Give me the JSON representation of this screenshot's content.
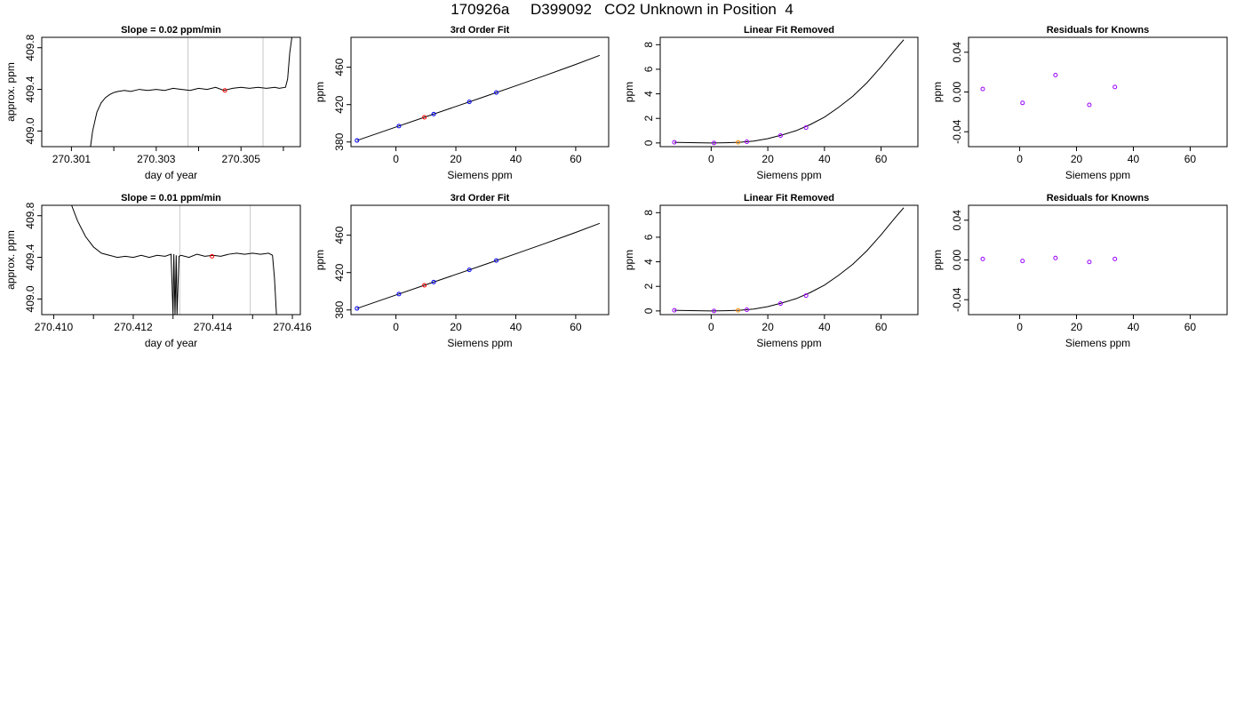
{
  "page": {
    "title": "170926a     D399092   CO2 Unknown in Position  4"
  },
  "colors": {
    "axis": "#000000",
    "curve": "#000000",
    "known_points": "#0000ff",
    "unknown_point": "#ff0000",
    "unknown_point_linear_removed": "#ff8c00",
    "residual_points": "#9900ff",
    "reference_lines": "#c8c8c8"
  },
  "chart_data": [
    {
      "id": "r1c1",
      "type": "line",
      "title": "Slope =  0.02  ppm/min",
      "xlabel": "day of year",
      "ylabel": "approx. ppm",
      "xlim": [
        270.3003,
        270.3064
      ],
      "ylim": [
        408.85,
        409.9
      ],
      "xticks": [
        270.301,
        270.303,
        270.305
      ],
      "xtick_labels": [
        "270.301",
        "270.303",
        "270.305"
      ],
      "xticks_minor": [
        270.302,
        270.304,
        270.306
      ],
      "yticks": [
        409.0,
        409.4,
        409.8
      ],
      "ytick_labels": [
        "409.0",
        "409.4",
        "409.8"
      ],
      "vlines": [
        270.30375,
        270.30552
      ],
      "series": [
        {
          "style": "line",
          "x": [
            270.30145,
            270.3015,
            270.3016,
            270.3017,
            270.3018,
            270.3019,
            270.302,
            270.3021,
            270.30225,
            270.3024,
            270.3026,
            270.3028,
            270.303,
            270.3032,
            270.3034,
            270.3036,
            270.3038,
            270.304,
            270.3042,
            270.3044,
            270.3046,
            270.3048,
            270.305,
            270.3052,
            270.3054,
            270.3056,
            270.3058,
            270.3059,
            270.30605,
            270.3061,
            270.30615,
            270.3062
          ],
          "y": [
            408.85,
            409.0,
            409.18,
            409.27,
            409.32,
            409.35,
            409.37,
            409.38,
            409.39,
            409.38,
            409.4,
            409.39,
            409.4,
            409.39,
            409.41,
            409.4,
            409.39,
            409.41,
            409.4,
            409.42,
            409.39,
            409.41,
            409.42,
            409.41,
            409.42,
            409.41,
            409.42,
            409.41,
            409.42,
            409.5,
            409.75,
            409.9
          ]
        },
        {
          "style": "point",
          "color": "#ff0000",
          "x": [
            270.30462
          ],
          "y": [
            409.39
          ]
        }
      ]
    },
    {
      "id": "r1c2",
      "type": "scatter",
      "title": "3rd Order Fit",
      "xlabel": "Siemens ppm",
      "ylabel": "ppm",
      "xlim": [
        -15,
        71
      ],
      "ylim": [
        375,
        492
      ],
      "xticks": [
        0,
        20,
        40,
        60
      ],
      "xtick_labels": [
        "0",
        "20",
        "40",
        "60"
      ],
      "yticks": [
        380,
        420,
        460
      ],
      "ytick_labels": [
        "380",
        "420",
        "460"
      ],
      "series": [
        {
          "style": "line",
          "x": [
            -13,
            0,
            10,
            20,
            30,
            40,
            50,
            60,
            68
          ],
          "y": [
            381.6,
            396.0,
            407.0,
            418.0,
            429.0,
            440.1,
            451.4,
            463.0,
            472.7
          ]
        },
        {
          "style": "point",
          "color": "#0000ff",
          "x": [
            -13,
            1,
            12.6,
            24.5,
            33.5
          ],
          "y": [
            381.6,
            397.0,
            409.8,
            422.9,
            432.9
          ]
        },
        {
          "style": "point",
          "color": "#ff0000",
          "x": [
            9.5
          ],
          "y": [
            406.4
          ]
        }
      ]
    },
    {
      "id": "r1c3",
      "type": "scatter",
      "title": "Linear Fit Removed",
      "xlabel": "Siemens ppm",
      "ylabel": "ppm",
      "xlim": [
        -18,
        73
      ],
      "ylim": [
        -0.3,
        8.6
      ],
      "xticks": [
        0,
        20,
        40,
        60
      ],
      "xtick_labels": [
        "0",
        "20",
        "40",
        "60"
      ],
      "yticks": [
        0,
        2,
        4,
        6,
        8
      ],
      "ytick_labels": [
        "0",
        "2",
        "4",
        "6",
        "8"
      ],
      "series": [
        {
          "style": "line",
          "x": [
            -13,
            -5,
            0,
            5,
            10,
            15,
            20,
            25,
            30,
            35,
            40,
            45,
            50,
            55,
            60,
            65,
            68
          ],
          "y": [
            0.05,
            0.02,
            0.0,
            0.02,
            0.05,
            0.15,
            0.35,
            0.65,
            1.0,
            1.5,
            2.1,
            2.9,
            3.8,
            4.9,
            6.2,
            7.6,
            8.4
          ]
        },
        {
          "style": "point",
          "color": "#9900ff",
          "x": [
            -13,
            1,
            12.6,
            24.5,
            33.5
          ],
          "y": [
            0.05,
            0.0,
            0.1,
            0.6,
            1.25
          ]
        },
        {
          "style": "point",
          "color": "#ff8c00",
          "x": [
            9.5
          ],
          "y": [
            0.05
          ]
        }
      ]
    },
    {
      "id": "r1c4",
      "type": "scatter",
      "title": "Residuals for Knowns",
      "xlabel": "Siemens ppm",
      "ylabel": "ppm",
      "xlim": [
        -18,
        73
      ],
      "ylim": [
        -0.055,
        0.055
      ],
      "xticks": [
        0,
        20,
        40,
        60
      ],
      "xtick_labels": [
        "0",
        "20",
        "40",
        "60"
      ],
      "yticks": [
        -0.04,
        0.0,
        0.04
      ],
      "ytick_labels": [
        "-0.04",
        "0.00",
        "0.04"
      ],
      "series": [
        {
          "style": "point",
          "color": "#9900ff",
          "x": [
            -13,
            1,
            12.6,
            24.5,
            33.5
          ],
          "y": [
            0.003,
            -0.011,
            0.017,
            -0.013,
            0.005
          ]
        }
      ]
    },
    {
      "id": "r2c1",
      "type": "line",
      "title": "Slope =  0.01  ppm/min",
      "xlabel": "day of year",
      "ylabel": "approx. ppm",
      "xlim": [
        270.4097,
        270.4162
      ],
      "ylim": [
        408.85,
        409.9
      ],
      "xticks": [
        270.41,
        270.412,
        270.414,
        270.416
      ],
      "xtick_labels": [
        "270.410",
        "270.412",
        "270.414",
        "270.416"
      ],
      "xticks_minor": [
        270.411,
        270.413,
        270.415
      ],
      "yticks": [
        409.0,
        409.4,
        409.8
      ],
      "ytick_labels": [
        "409.0",
        "409.4",
        "409.8"
      ],
      "vlines": [
        270.41317,
        270.41494
      ],
      "series": [
        {
          "style": "line",
          "x": [
            270.41045,
            270.4106,
            270.4108,
            270.411,
            270.4112,
            270.4114,
            270.4116,
            270.4118,
            270.412,
            270.4122,
            270.4124,
            270.4126,
            270.4128,
            270.41295,
            270.413,
            270.41302,
            270.41305,
            270.41308,
            270.4131,
            270.41315,
            270.4132,
            270.4134,
            270.4136,
            270.4138,
            270.414,
            270.4142,
            270.4144,
            270.4146,
            270.4148,
            270.415,
            270.4152,
            270.4154,
            270.4155,
            270.41555,
            270.4156
          ],
          "y": [
            409.9,
            409.75,
            409.6,
            409.5,
            409.44,
            409.42,
            409.4,
            409.41,
            409.4,
            409.42,
            409.4,
            409.42,
            409.41,
            409.43,
            408.85,
            409.43,
            408.85,
            409.42,
            408.85,
            409.41,
            409.42,
            409.4,
            409.43,
            409.41,
            409.42,
            409.41,
            409.43,
            409.44,
            409.43,
            409.44,
            409.43,
            409.44,
            409.42,
            409.2,
            408.85
          ]
        },
        {
          "style": "point",
          "color": "#ff0000",
          "x": [
            270.41398
          ],
          "y": [
            409.41
          ]
        }
      ]
    },
    {
      "id": "r2c2",
      "type": "scatter",
      "title": "3rd Order Fit",
      "xlabel": "Siemens ppm",
      "ylabel": "ppm",
      "xlim": [
        -15,
        71
      ],
      "ylim": [
        375,
        492
      ],
      "xticks": [
        0,
        20,
        40,
        60
      ],
      "xtick_labels": [
        "0",
        "20",
        "40",
        "60"
      ],
      "yticks": [
        380,
        420,
        460
      ],
      "ytick_labels": [
        "380",
        "420",
        "460"
      ],
      "series": [
        {
          "style": "line",
          "x": [
            -13,
            0,
            10,
            20,
            30,
            40,
            50,
            60,
            68
          ],
          "y": [
            381.6,
            396.0,
            407.0,
            418.0,
            429.0,
            440.1,
            451.4,
            463.0,
            472.7
          ]
        },
        {
          "style": "point",
          "color": "#0000ff",
          "x": [
            -13,
            1,
            12.6,
            24.5,
            33.5
          ],
          "y": [
            381.6,
            397.0,
            409.8,
            422.9,
            432.9
          ]
        },
        {
          "style": "point",
          "color": "#ff0000",
          "x": [
            9.5
          ],
          "y": [
            406.4
          ]
        }
      ]
    },
    {
      "id": "r2c3",
      "type": "scatter",
      "title": "Linear Fit Removed",
      "xlabel": "Siemens ppm",
      "ylabel": "ppm",
      "xlim": [
        -18,
        73
      ],
      "ylim": [
        -0.3,
        8.6
      ],
      "xticks": [
        0,
        20,
        40,
        60
      ],
      "xtick_labels": [
        "0",
        "20",
        "40",
        "60"
      ],
      "yticks": [
        0,
        2,
        4,
        6,
        8
      ],
      "ytick_labels": [
        "0",
        "2",
        "4",
        "6",
        "8"
      ],
      "series": [
        {
          "style": "line",
          "x": [
            -13,
            -5,
            0,
            5,
            10,
            15,
            20,
            25,
            30,
            35,
            40,
            45,
            50,
            55,
            60,
            65,
            68
          ],
          "y": [
            0.05,
            0.02,
            0.0,
            0.02,
            0.05,
            0.15,
            0.35,
            0.65,
            1.0,
            1.5,
            2.1,
            2.9,
            3.8,
            4.9,
            6.2,
            7.6,
            8.4
          ]
        },
        {
          "style": "point",
          "color": "#9900ff",
          "x": [
            -13,
            1,
            12.6,
            24.5,
            33.5
          ],
          "y": [
            0.05,
            0.0,
            0.1,
            0.6,
            1.25
          ]
        },
        {
          "style": "point",
          "color": "#ff8c00",
          "x": [
            9.5
          ],
          "y": [
            0.05
          ]
        }
      ]
    },
    {
      "id": "r2c4",
      "type": "scatter",
      "title": "Residuals for Knowns",
      "xlabel": "Siemens ppm",
      "ylabel": "ppm",
      "xlim": [
        -18,
        73
      ],
      "ylim": [
        -0.055,
        0.055
      ],
      "xticks": [
        0,
        20,
        40,
        60
      ],
      "xtick_labels": [
        "0",
        "20",
        "40",
        "60"
      ],
      "yticks": [
        -0.04,
        0.0,
        0.04
      ],
      "ytick_labels": [
        "-0.04",
        "0.00",
        "0.04"
      ],
      "series": [
        {
          "style": "point",
          "color": "#9900ff",
          "x": [
            -13,
            1,
            12.6,
            24.5,
            33.5
          ],
          "y": [
            0.001,
            -0.001,
            0.002,
            -0.002,
            0.001
          ]
        }
      ]
    }
  ]
}
